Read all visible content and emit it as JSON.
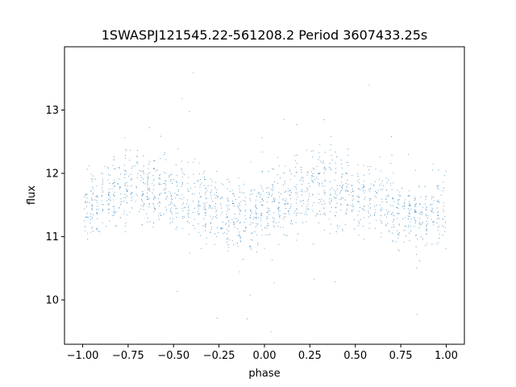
{
  "chart_data": {
    "type": "scatter",
    "title": "1SWASPJ121545.22-561208.2 Period 3607433.25s",
    "xlabel": "phase",
    "ylabel": "flux",
    "xlim": [
      -1.1,
      1.1
    ],
    "ylim": [
      9.3,
      14.0
    ],
    "xticks": [
      -1.0,
      -0.75,
      -0.5,
      -0.25,
      0.0,
      0.25,
      0.5,
      0.75,
      1.0
    ],
    "xtick_labels": [
      "−1.00",
      "−0.75",
      "−0.50",
      "−0.25",
      "0.00",
      "0.25",
      "0.50",
      "0.75",
      "1.00"
    ],
    "yticks": [
      10,
      11,
      12,
      13
    ],
    "ytick_labels": [
      "10",
      "11",
      "12",
      "13"
    ],
    "grid": false,
    "legend": "none",
    "marker_color": "#1f77b4",
    "series": [
      {
        "x_range": [
          -1.0,
          1.0
        ],
        "typical_y_range": [
          10.9,
          12.3
        ],
        "outlier_y_range": [
          9.5,
          13.7
        ],
        "folded_period_phase": 1.0,
        "profile_x": [
          -1.0,
          -0.9,
          -0.8,
          -0.7,
          -0.6,
          -0.5,
          -0.4,
          -0.3,
          -0.2,
          -0.1,
          0.0,
          0.1,
          0.2,
          0.3,
          0.4,
          0.5,
          0.6,
          0.7,
          0.8,
          0.9,
          1.0
        ],
        "profile_y": [
          11.45,
          11.6,
          11.75,
          11.8,
          11.75,
          11.65,
          11.6,
          11.5,
          11.3,
          11.3,
          11.4,
          11.55,
          11.7,
          11.8,
          11.75,
          11.65,
          11.6,
          11.5,
          11.3,
          11.35,
          11.45
        ]
      }
    ]
  }
}
